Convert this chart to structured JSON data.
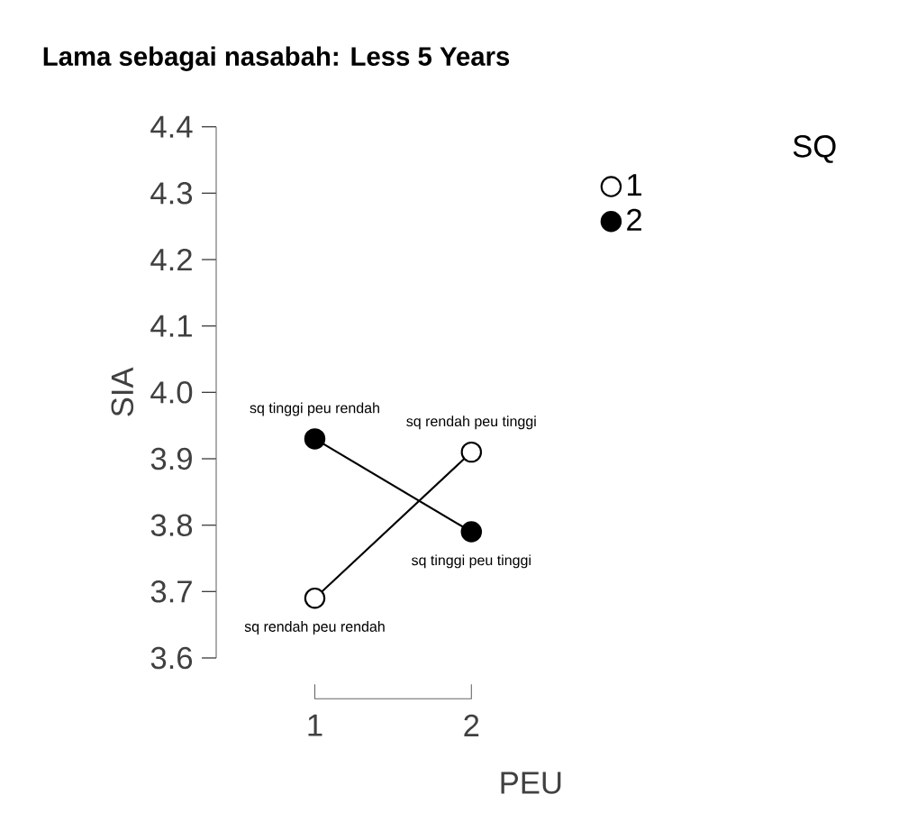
{
  "chart_data": {
    "type": "line",
    "title": "Lama sebagai nasabah: Less 5 Years",
    "xlabel": "PEU",
    "ylabel": "SIA",
    "legend_title": "SQ",
    "categories": [
      "1",
      "2"
    ],
    "series": [
      {
        "name": "1",
        "color": "#ffffff",
        "values": [
          3.69,
          3.91
        ]
      },
      {
        "name": "2",
        "color": "#000000",
        "values": [
          3.93,
          3.79
        ]
      }
    ],
    "ylim": [
      3.6,
      4.4
    ],
    "yticks": [
      3.6,
      3.7,
      3.8,
      3.9,
      {
        "value": 4.0,
        "label": "4.0"
      },
      4.1,
      4.2,
      4.3,
      4.4
    ],
    "marker": "circle",
    "legend": "top right",
    "grid": false,
    "annotations": [
      {
        "text": "sq tinggi peu rendah",
        "x": "1",
        "y": 3.93
      },
      {
        "text": "sq rendah peu tinggi",
        "x": "2",
        "y": 3.91
      },
      {
        "text": "sq rendah peu rendah",
        "x": "1",
        "y": 3.69
      },
      {
        "text": "sq tinggi peu tinggi",
        "x": "2",
        "y": 3.79
      }
    ]
  }
}
